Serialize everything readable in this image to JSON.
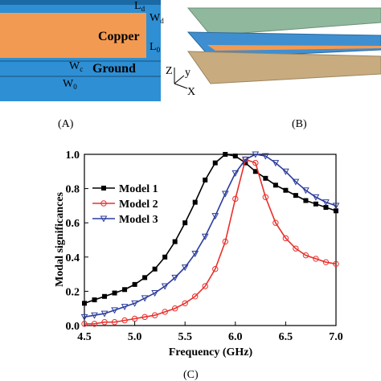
{
  "panel_a": {
    "label": "(A)",
    "copper": "Copper",
    "ground": "Ground",
    "dims": [
      {
        "main": "L",
        "sub": "d"
      },
      {
        "main": "W",
        "sub": "d"
      },
      {
        "main": "L",
        "sub": "0"
      },
      {
        "main": "W",
        "sub": "c"
      },
      {
        "main": "W",
        "sub": "0"
      }
    ]
  },
  "panel_b": {
    "label": "(B)",
    "axes": [
      "Z",
      "y",
      "X"
    ]
  },
  "panel_c": {
    "label": "(C)"
  },
  "chart_data": {
    "type": "line",
    "x_label": "Frequency (GHz)",
    "y_label": "Modal significances",
    "x": [
      4.5,
      4.6,
      4.7,
      4.8,
      4.9,
      5.0,
      5.1,
      5.2,
      5.3,
      5.4,
      5.5,
      5.6,
      5.7,
      5.8,
      5.9,
      6.0,
      6.1,
      6.2,
      6.3,
      6.4,
      6.5,
      6.6,
      6.7,
      6.8,
      6.9,
      7.0
    ],
    "series": [
      {
        "name": "Model 1",
        "color": "#000000",
        "marker": "square",
        "values": [
          0.13,
          0.15,
          0.17,
          0.19,
          0.21,
          0.24,
          0.28,
          0.33,
          0.4,
          0.49,
          0.6,
          0.72,
          0.85,
          0.95,
          1.0,
          0.99,
          0.95,
          0.9,
          0.86,
          0.82,
          0.79,
          0.76,
          0.73,
          0.71,
          0.69,
          0.67
        ]
      },
      {
        "name": "Model 2",
        "color": "#e8302a",
        "marker": "circle",
        "values": [
          0.01,
          0.01,
          0.02,
          0.02,
          0.03,
          0.04,
          0.05,
          0.06,
          0.08,
          0.1,
          0.13,
          0.17,
          0.23,
          0.33,
          0.49,
          0.74,
          0.97,
          0.95,
          0.75,
          0.6,
          0.51,
          0.45,
          0.41,
          0.39,
          0.37,
          0.36
        ]
      },
      {
        "name": "Model 3",
        "color": "#2a3c9c",
        "marker": "triangle",
        "values": [
          0.05,
          0.06,
          0.07,
          0.09,
          0.11,
          0.13,
          0.16,
          0.19,
          0.23,
          0.28,
          0.34,
          0.42,
          0.52,
          0.64,
          0.77,
          0.89,
          0.97,
          1.0,
          0.99,
          0.95,
          0.9,
          0.84,
          0.79,
          0.75,
          0.72,
          0.7
        ]
      }
    ],
    "xlim": [
      4.5,
      7.0
    ],
    "xticks": [
      4.5,
      {
        "value": 5,
        "label": "5.0"
      },
      5.5,
      {
        "value": 6,
        "label": "6.0"
      },
      6.5,
      {
        "value": 7,
        "label": "7.0"
      }
    ],
    "ylim": [
      0,
      1
    ],
    "yticks": [
      {
        "value": 0,
        "label": "0.0"
      },
      0.2,
      0.4,
      0.6,
      0.8,
      {
        "value": 1,
        "label": "1.0"
      }
    ],
    "legend": "upper left"
  }
}
